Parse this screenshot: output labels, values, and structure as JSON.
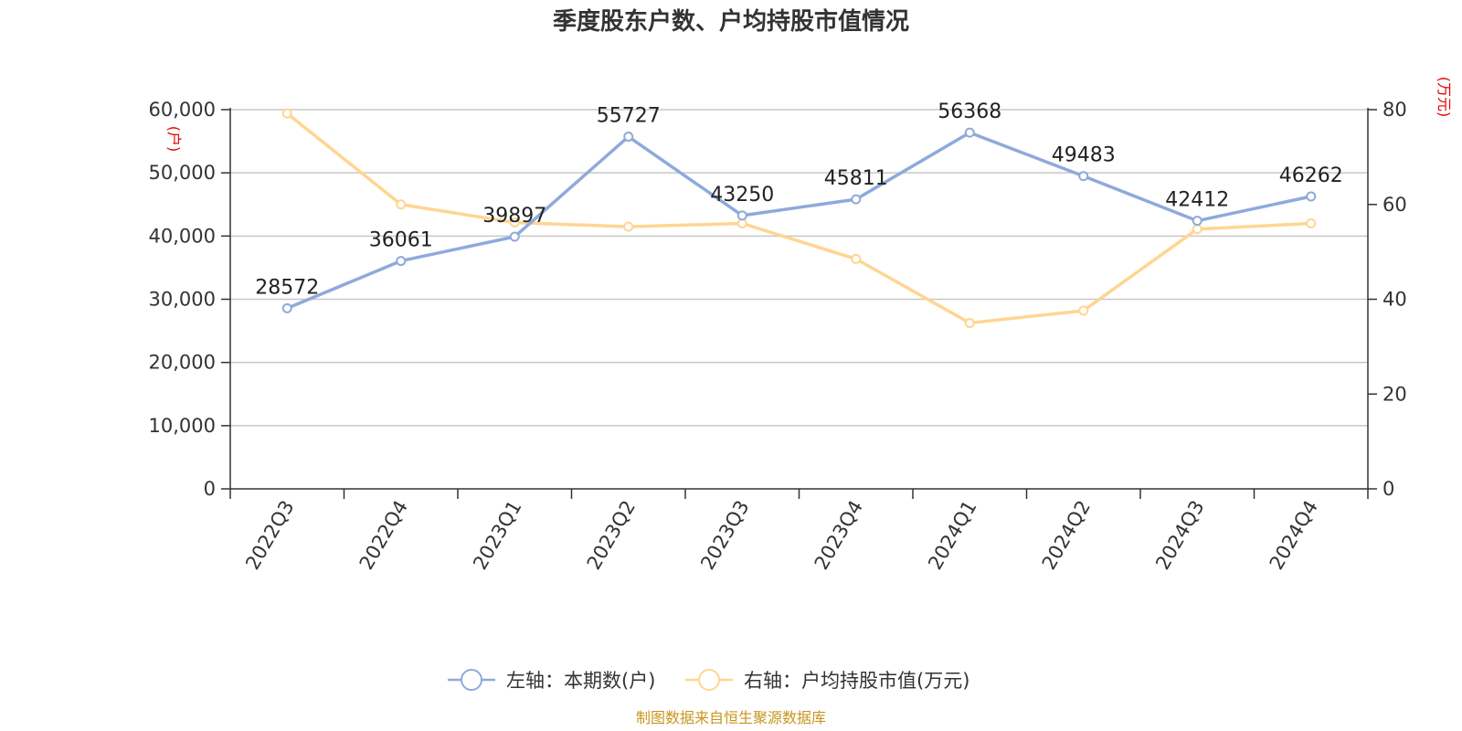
{
  "chart_data": {
    "type": "line",
    "title": "季度股东户数、户均持股市值情况",
    "categories": [
      "2022Q3",
      "2022Q4",
      "2023Q1",
      "2023Q2",
      "2023Q3",
      "2023Q4",
      "2024Q1",
      "2024Q2",
      "2024Q3",
      "2024Q4"
    ],
    "left_axis": {
      "unit": "(户)",
      "ylim": [
        0,
        60000
      ],
      "ticks": [
        "0",
        "10,000",
        "20,000",
        "30,000",
        "40,000",
        "50,000",
        "60,000"
      ]
    },
    "right_axis": {
      "unit": "(万元)",
      "ylim": [
        0,
        80
      ],
      "ticks": [
        "0",
        "20",
        "40",
        "60",
        "80"
      ]
    },
    "series": [
      {
        "name": "左轴：本期数(户)",
        "axis": "left",
        "color": "#8eaadb",
        "values": [
          28572,
          36061,
          39897,
          55727,
          43250,
          45811,
          56368,
          49483,
          42412,
          46262
        ],
        "labels": [
          "28572",
          "36061",
          "39897",
          "55727",
          "43250",
          "45811",
          "56368",
          "49483",
          "42412",
          "46262"
        ]
      },
      {
        "name": "右轴：户均持股市值(万元)",
        "axis": "right",
        "color": "#ffd591",
        "values": [
          79.2,
          60.0,
          56.2,
          55.3,
          56.0,
          48.5,
          35.0,
          37.6,
          54.8,
          56.0
        ]
      }
    ],
    "grid": true,
    "legend": "bottom-center"
  },
  "source": "制图数据来自恒生聚源数据库"
}
